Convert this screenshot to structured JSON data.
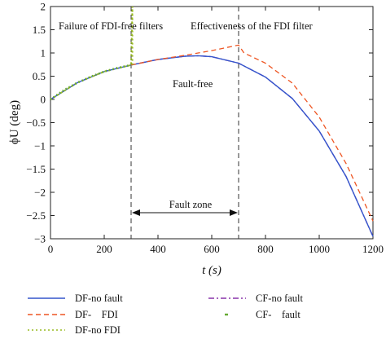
{
  "chart_data": {
    "type": "line",
    "xlabel": "t (s)",
    "ylabel": "ϕU (deg)",
    "xlim": [
      0,
      1200
    ],
    "ylim": [
      -3,
      2
    ],
    "xticks": [
      "0",
      "200",
      "400",
      "600",
      "800",
      "1000",
      "1200"
    ],
    "yticks": [
      "2",
      "1.5",
      "1",
      "0.5",
      "0",
      "−0.5",
      "−1",
      "−1.5",
      "−2",
      "−2.5",
      "−3"
    ],
    "grid": false,
    "annotations": {
      "failure": "Failure of FDI-free filters",
      "effectiveness": "Effectiveness of the FDI filter",
      "fault_free": "Fault-free",
      "fault_zone": "Fault zone"
    },
    "fault_zone": [
      300,
      700
    ],
    "series": [
      {
        "name": "DF-no fault",
        "color": "#3355cc",
        "style": "solid",
        "x": [
          0,
          100,
          200,
          300,
          400,
          500,
          550,
          600,
          700,
          800,
          900,
          1000,
          1100,
          1200
        ],
        "y": [
          0,
          0.36,
          0.6,
          0.74,
          0.86,
          0.93,
          0.94,
          0.92,
          0.78,
          0.48,
          0.02,
          -0.68,
          -1.66,
          -2.95
        ]
      },
      {
        "name": "DF-    FDI",
        "color": "#ee5522",
        "style": "dashed",
        "x": [
          300,
          400,
          500,
          600,
          700,
          720,
          800,
          900,
          1000,
          1100,
          1200
        ],
        "y": [
          0.74,
          0.86,
          0.95,
          1.05,
          1.17,
          1.0,
          0.78,
          0.35,
          -0.38,
          -1.38,
          -2.62
        ]
      },
      {
        "name": "DF-no FDI",
        "color": "#99bb22",
        "style": "dotted",
        "x": [
          0,
          100,
          200,
          300,
          305,
          305
        ],
        "y": [
          0,
          0.36,
          0.6,
          0.74,
          2.0,
          0.74
        ]
      },
      {
        "name": "CF-no fault",
        "color": "#8833aa",
        "style": "dashdot",
        "x": [
          0,
          100,
          200,
          300,
          400,
          500,
          550,
          600,
          700,
          800,
          900,
          1000,
          1100,
          1200
        ],
        "y": [
          0,
          0.36,
          0.6,
          0.74,
          0.86,
          0.93,
          0.94,
          0.92,
          0.78,
          0.48,
          0.02,
          -0.68,
          -1.66,
          -2.95
        ]
      },
      {
        "name": "CF-    fault",
        "color": "#66aa33",
        "style": "dot",
        "x": [
          0,
          50,
          100,
          150,
          200,
          250,
          300
        ],
        "y": [
          0,
          0.2,
          0.36,
          0.49,
          0.6,
          0.68,
          0.74
        ]
      }
    ]
  }
}
